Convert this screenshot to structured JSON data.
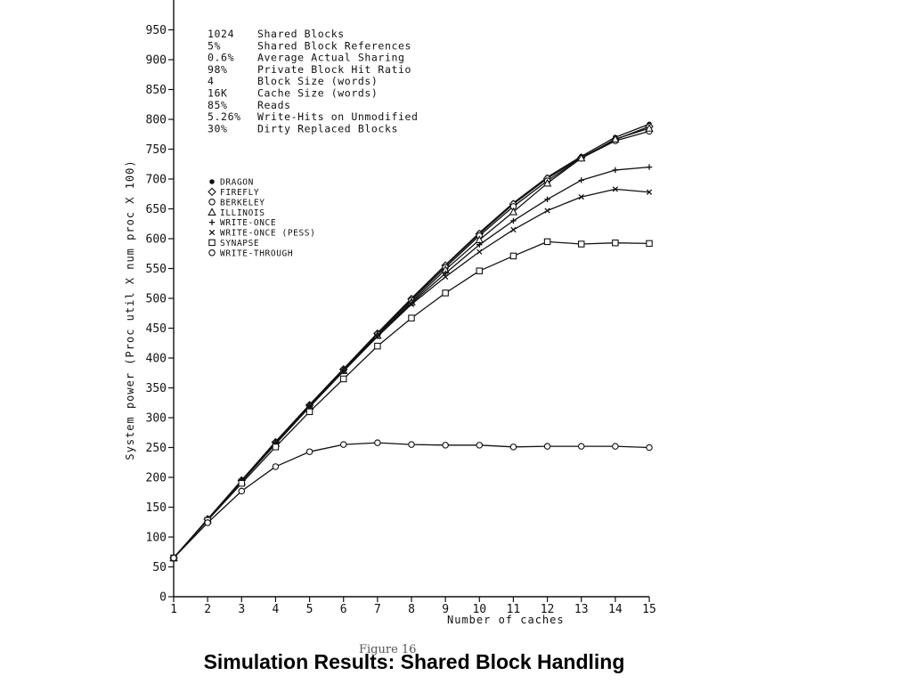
{
  "slide": {
    "title": "Simulation Results: Shared Block Handling",
    "figure_caption": "Figure 16"
  },
  "chart_data": {
    "type": "line",
    "title": "",
    "xlabel": "Number of caches",
    "ylabel": "System power (Proc util X num proc X 100)",
    "x": [
      1,
      2,
      3,
      4,
      5,
      6,
      7,
      8,
      9,
      10,
      11,
      12,
      13,
      14,
      15
    ],
    "xlim": [
      1,
      15
    ],
    "ylim": [
      0,
      1000
    ],
    "yticks": [
      0,
      50,
      100,
      150,
      200,
      250,
      300,
      350,
      400,
      450,
      500,
      550,
      600,
      650,
      700,
      750,
      800,
      850,
      900,
      950
    ],
    "ytick_labels": [
      "0",
      "50",
      "100",
      "150",
      "200",
      "250",
      "300",
      "350",
      "400",
      "450",
      "500",
      "550",
      "600",
      "650",
      "700",
      "750",
      "800",
      "850",
      "900",
      "950"
    ],
    "xtick_labels": [
      "1",
      "2",
      "3",
      "4",
      "5",
      "6",
      "7",
      "8",
      "9",
      "10",
      "11",
      "12",
      "13",
      "14",
      "15"
    ],
    "grid": false,
    "legend_position": "upper-left",
    "parameters": [
      {
        "value": "1024",
        "label": "Shared Blocks"
      },
      {
        "value": "5%",
        "label": "Shared Block References"
      },
      {
        "value": "0.6%",
        "label": "Average Actual Sharing"
      },
      {
        "value": "98%",
        "label": "Private Block Hit Ratio"
      },
      {
        "value": "4",
        "label": "Block Size (words)"
      },
      {
        "value": "16K",
        "label": "Cache Size (words)"
      },
      {
        "value": "85%",
        "label": "Reads"
      },
      {
        "value": "5.26%",
        "label": "Write-Hits on Unmodified"
      },
      {
        "value": "30%",
        "label": "Dirty Replaced Blocks"
      }
    ],
    "series": [
      {
        "name": "DRAGON",
        "marker": "filled-circle",
        "values": [
          65,
          130,
          195,
          260,
          322,
          382,
          442,
          500,
          556,
          610,
          660,
          703,
          738,
          770,
          792
        ]
      },
      {
        "name": "FIREFLY",
        "marker": "diamond",
        "values": [
          65,
          130,
          195,
          259,
          321,
          381,
          441,
          499,
          555,
          608,
          658,
          701,
          736,
          766,
          788
        ]
      },
      {
        "name": "BERKELEY",
        "marker": "open-circle",
        "values": [
          65,
          129,
          194,
          258,
          320,
          380,
          440,
          497,
          552,
          605,
          654,
          697,
          735,
          764,
          780
        ]
      },
      {
        "name": "ILLINOIS",
        "marker": "triangle",
        "values": [
          65,
          129,
          193,
          257,
          319,
          379,
          438,
          494,
          548,
          598,
          645,
          693,
          735,
          767,
          785
        ]
      },
      {
        "name": "WRITE-ONCE",
        "marker": "plus",
        "values": [
          65,
          129,
          193,
          256,
          318,
          378,
          437,
          492,
          542,
          590,
          630,
          666,
          698,
          715,
          720
        ]
      },
      {
        "name": "WRITE-ONCE (PESS)",
        "marker": "cross",
        "values": [
          65,
          129,
          193,
          256,
          318,
          378,
          436,
          490,
          536,
          578,
          615,
          647,
          670,
          683,
          678
        ]
      },
      {
        "name": "SYNAPSE",
        "marker": "square",
        "values": [
          65,
          128,
          190,
          251,
          310,
          365,
          420,
          467,
          509,
          546,
          571,
          595,
          591,
          593,
          592
        ]
      },
      {
        "name": "WRITE-THROUGH",
        "marker": "open-circle",
        "values": [
          65,
          124,
          177,
          218,
          243,
          255,
          258,
          255,
          254,
          254,
          251,
          252,
          252,
          252,
          250
        ]
      }
    ]
  }
}
